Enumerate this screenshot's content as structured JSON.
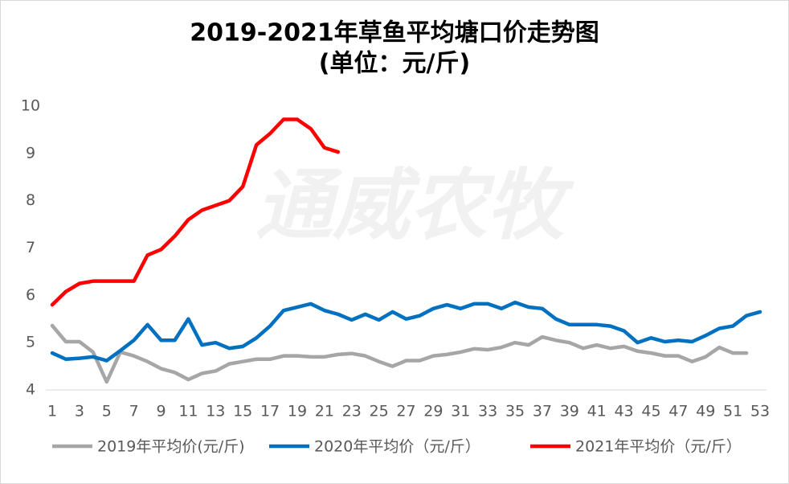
{
  "chart_data": {
    "type": "line",
    "title": "2019-2021年草鱼平均塘口价走势图",
    "subtitle": "(单位：元/斤)",
    "watermark": "通威农牧",
    "x": [
      1,
      2,
      3,
      4,
      5,
      6,
      7,
      8,
      9,
      10,
      11,
      12,
      13,
      14,
      15,
      16,
      17,
      18,
      19,
      20,
      21,
      22,
      23,
      24,
      25,
      26,
      27,
      28,
      29,
      30,
      31,
      32,
      33,
      34,
      35,
      36,
      37,
      38,
      39,
      40,
      41,
      42,
      43,
      44,
      45,
      46,
      47,
      48,
      49,
      50,
      51,
      52,
      53
    ],
    "xlim": [
      1,
      53
    ],
    "xticks": [
      1,
      3,
      5,
      7,
      9,
      11,
      13,
      15,
      17,
      19,
      21,
      23,
      25,
      27,
      29,
      31,
      33,
      35,
      37,
      39,
      41,
      43,
      45,
      47,
      49,
      51,
      53
    ],
    "ylim": [
      4,
      10
    ],
    "yticks": [
      4,
      5,
      6,
      7,
      8,
      9,
      10
    ],
    "legend": "bottom",
    "series": [
      {
        "name": "2019年平均价(元/斤)",
        "color": "#a6a6a6",
        "values": [
          5.36,
          5.02,
          5.02,
          4.8,
          4.17,
          4.8,
          4.72,
          4.6,
          4.45,
          4.37,
          4.22,
          4.35,
          4.4,
          4.55,
          4.6,
          4.65,
          4.65,
          4.72,
          4.72,
          4.7,
          4.7,
          4.75,
          4.77,
          4.72,
          4.6,
          4.5,
          4.62,
          4.62,
          4.72,
          4.75,
          4.8,
          4.87,
          4.85,
          4.9,
          5.0,
          4.95,
          5.12,
          5.05,
          5.0,
          4.88,
          4.95,
          4.88,
          4.92,
          4.82,
          4.78,
          4.72,
          4.72,
          4.6,
          4.7,
          4.9,
          4.78,
          4.78,
          null
        ]
      },
      {
        "name": "2020年平均价（元/斤）",
        "color": "#0070c0",
        "values": [
          4.78,
          4.65,
          4.67,
          4.7,
          4.62,
          4.83,
          5.05,
          5.38,
          5.05,
          5.05,
          5.5,
          4.95,
          5.0,
          4.88,
          4.92,
          5.1,
          5.35,
          5.68,
          5.75,
          5.82,
          5.68,
          5.6,
          5.48,
          5.6,
          5.48,
          5.65,
          5.5,
          5.57,
          5.72,
          5.8,
          5.72,
          5.82,
          5.82,
          5.72,
          5.85,
          5.75,
          5.72,
          5.5,
          5.38,
          5.38,
          5.38,
          5.35,
          5.25,
          5.0,
          5.1,
          5.02,
          5.05,
          5.02,
          5.15,
          5.3,
          5.35,
          5.57,
          5.65
        ]
      },
      {
        "name": "2021年平均价（元/斤）",
        "color": "#ff0000",
        "values": [
          5.8,
          6.08,
          6.25,
          6.3,
          6.3,
          6.3,
          6.3,
          6.85,
          6.97,
          7.25,
          7.6,
          7.8,
          7.9,
          8.0,
          8.3,
          9.18,
          9.42,
          9.72,
          9.72,
          9.52,
          9.12,
          9.03,
          null,
          null,
          null,
          null,
          null,
          null,
          null,
          null,
          null,
          null,
          null,
          null,
          null,
          null,
          null,
          null,
          null,
          null,
          null,
          null,
          null,
          null,
          null,
          null,
          null,
          null,
          null,
          null,
          null,
          null,
          null
        ]
      }
    ]
  }
}
